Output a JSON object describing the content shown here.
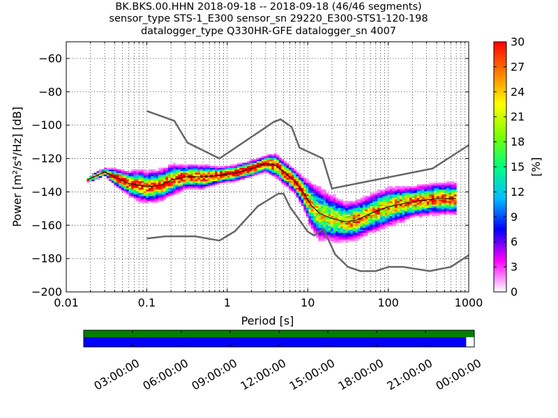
{
  "title_lines": [
    "BK.BKS.00.HHN   2018-09-18 -- 2018-09-18  (46/46 segments)",
    "sensor_type STS-1_E300 sensor_sn 29220_E300-STS1-120-198",
    "datalogger_type Q330HR-GFE datalogger_sn 4007"
  ],
  "chart_data": [
    {
      "type": "heatmap",
      "name": "ppsd",
      "xlabel": "Period [s]",
      "ylabel": "Power [m²/s⁴/Hz] [dB]",
      "xscale": "log",
      "xlim": [
        0.01,
        1000
      ],
      "ylim": [
        -200,
        -50
      ],
      "xticks": [
        0.01,
        0.1,
        1,
        10,
        100,
        1000
      ],
      "xtick_labels": [
        "0.01",
        "0.1",
        "1",
        "10",
        "100",
        "1000"
      ],
      "yticks": [
        -60,
        -80,
        -100,
        -120,
        -140,
        -160,
        -180,
        -200
      ],
      "ytick_labels": [
        "−60",
        "−80",
        "−100",
        "−120",
        "−140",
        "−160",
        "−180",
        "−200"
      ],
      "grid": true,
      "colorbar": {
        "label": "[%]",
        "min": 0,
        "max": 30,
        "ticks": [
          0,
          3,
          6,
          9,
          12,
          15,
          18,
          21,
          24,
          27,
          30
        ],
        "colors": [
          "#ffffff",
          "#ff00ff",
          "#0000ff",
          "#00bfff",
          "#00ff7f",
          "#7fff00",
          "#ffff00",
          "#ff7f00",
          "#ff0000"
        ]
      },
      "density_band": {
        "period": [
          0.018,
          0.022,
          0.03,
          0.04,
          0.06,
          0.08,
          0.1,
          0.15,
          0.2,
          0.3,
          0.5,
          0.8,
          1.2,
          2,
          3,
          4,
          5,
          7,
          9,
          11,
          14,
          20,
          30,
          40,
          60,
          100,
          200,
          400,
          700
        ],
        "center": [
          -133,
          -131,
          -128,
          -131,
          -135,
          -136,
          -137,
          -136,
          -133,
          -131,
          -131,
          -130,
          -129,
          -126,
          -123,
          -124,
          -128,
          -134,
          -141,
          -148,
          -153,
          -156,
          -158,
          -157,
          -153,
          -149,
          -146,
          -144,
          -144
        ],
        "spread": [
          0.5,
          1,
          1,
          2,
          3,
          4,
          4,
          4,
          4,
          3,
          3,
          2,
          2,
          2,
          2,
          3,
          3,
          3,
          4,
          6,
          7,
          6,
          5,
          5,
          5,
          5,
          4,
          4,
          4
        ]
      },
      "mean_curve": {
        "period": [
          0.018,
          0.022,
          0.03,
          0.04,
          0.06,
          0.08,
          0.1,
          0.15,
          0.2,
          0.3,
          0.5,
          0.8,
          1.2,
          2,
          3,
          4,
          5,
          7,
          9,
          11,
          14,
          20,
          30,
          40,
          60,
          100,
          200,
          400,
          700
        ],
        "power": [
          -133,
          -131,
          -128,
          -131,
          -135,
          -136,
          -137,
          -136,
          -133,
          -131,
          -131,
          -130,
          -129,
          -126,
          -123,
          -124,
          -128,
          -134,
          -141,
          -148,
          -153,
          -156,
          -158,
          -157,
          -153,
          -149,
          -146,
          -144,
          -144
        ]
      },
      "noise_models": [
        {
          "period": [
            0.1,
            0.22,
            0.32,
            0.8,
            3.8,
            4.6,
            6.3,
            7.9,
            15.4,
            20,
            354.8,
            1000
          ],
          "power": [
            -91.5,
            -97.4,
            -110.5,
            -120,
            -98,
            -96.5,
            -101,
            -113.5,
            -120,
            -138,
            -126,
            -112
          ]
        },
        {
          "period": [
            0.1,
            0.17,
            0.4,
            0.8,
            1.24,
            2.4,
            4.3,
            5,
            6,
            10,
            12,
            15.6,
            21.9,
            31.6,
            45,
            70,
            101,
            154,
            328,
            600,
            1000
          ],
          "power": [
            -168,
            -166.7,
            -166.7,
            -169.2,
            -163.7,
            -148.6,
            -141.1,
            -141.1,
            -149,
            -163.8,
            -166.2,
            -162.1,
            -177.5,
            -185,
            -187.5,
            -187.5,
            -185,
            -185,
            -187.5,
            -185,
            -178
          ]
        }
      ]
    },
    {
      "type": "bar",
      "name": "data-coverage",
      "xlim": [
        "2018-09-18 00:00:00",
        "2018-09-19 00:00:00"
      ],
      "xtick_labels": [
        "03:00:00",
        "06:00:00",
        "09:00:00",
        "12:00:00",
        "15:00:00",
        "18:00:00",
        "21:00:00",
        "00:00:00"
      ],
      "rows": [
        {
          "name": "total",
          "start": "2018-09-18 00:00:00",
          "end": "2018-09-19 00:00:00",
          "color": "#008000"
        },
        {
          "name": "used",
          "start": "2018-09-18 00:00:00",
          "end": "2018-09-18 23:30:00",
          "color": "#0000ff"
        }
      ]
    }
  ]
}
